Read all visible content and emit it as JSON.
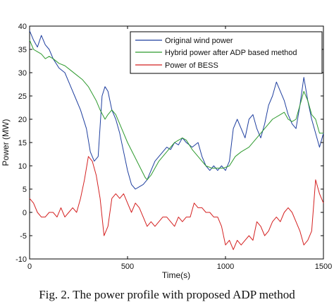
{
  "chart_data": {
    "type": "line",
    "xlabel": "Time(s)",
    "ylabel": "Power (MW)",
    "xlim": [
      0,
      1500
    ],
    "ylim": [
      -10,
      40
    ],
    "xticks": [
      0,
      500,
      1000,
      1500
    ],
    "yticks": [
      -10,
      -5,
      0,
      5,
      10,
      15,
      20,
      25,
      30,
      35,
      40
    ],
    "grid": false,
    "legend_position": "top-right",
    "series": [
      {
        "name": "Original wind power",
        "color": "#1f3f9f",
        "x": [
          0,
          20,
          40,
          60,
          80,
          100,
          120,
          150,
          180,
          200,
          230,
          260,
          290,
          310,
          330,
          350,
          370,
          385,
          400,
          420,
          440,
          460,
          480,
          500,
          520,
          540,
          560,
          580,
          600,
          620,
          640,
          660,
          680,
          700,
          720,
          740,
          760,
          780,
          800,
          830,
          860,
          880,
          900,
          920,
          940,
          960,
          980,
          1000,
          1020,
          1040,
          1060,
          1080,
          1100,
          1120,
          1140,
          1160,
          1180,
          1200,
          1220,
          1240,
          1260,
          1280,
          1300,
          1320,
          1340,
          1360,
          1380,
          1400,
          1420,
          1440,
          1460,
          1480,
          1500
        ],
        "values": [
          39,
          37,
          35.5,
          38,
          36,
          35,
          33,
          31,
          30,
          28,
          25,
          22,
          18,
          13,
          11,
          12,
          25,
          27,
          26,
          22,
          20,
          17,
          13,
          9,
          6,
          5,
          5.5,
          6,
          7,
          9,
          11,
          12,
          13,
          14,
          13.5,
          15,
          14.5,
          16,
          15,
          14,
          15,
          12,
          10,
          9,
          10,
          9,
          10,
          9,
          11,
          18,
          20,
          18,
          16,
          20,
          21,
          18,
          16,
          19,
          23,
          25,
          28,
          26,
          24,
          21,
          19,
          18,
          23,
          29,
          24,
          20,
          17,
          14,
          17
        ]
      },
      {
        "name": "Hybrid power after ADP based method",
        "color": "#2e9a2e",
        "x": [
          0,
          20,
          40,
          60,
          80,
          100,
          120,
          150,
          180,
          210,
          240,
          270,
          300,
          340,
          360,
          385,
          400,
          420,
          440,
          470,
          500,
          530,
          560,
          590,
          600,
          620,
          640,
          660,
          680,
          700,
          720,
          740,
          760,
          780,
          800,
          830,
          860,
          880,
          900,
          930,
          960,
          990,
          1020,
          1050,
          1080,
          1120,
          1160,
          1200,
          1240,
          1280,
          1300,
          1320,
          1340,
          1360,
          1380,
          1400,
          1420,
          1440,
          1460,
          1480,
          1500
        ],
        "values": [
          37,
          35,
          34.5,
          34,
          33,
          33.5,
          33,
          32,
          31.5,
          30.5,
          29.5,
          28.5,
          27,
          24,
          22,
          20,
          21,
          22,
          21,
          18,
          15,
          12.5,
          10,
          7.5,
          7,
          8,
          9.5,
          11,
          12,
          13,
          14,
          15,
          15.5,
          16,
          15.5,
          13.5,
          12,
          11,
          10,
          9.5,
          9.5,
          9.5,
          10,
          12,
          13,
          14,
          16,
          18,
          20,
          21,
          21.5,
          20,
          19.5,
          20,
          23,
          26,
          24,
          21,
          20,
          17,
          17
        ]
      },
      {
        "name": "Power of BESS",
        "color": "#d42020",
        "x": [
          0,
          20,
          40,
          60,
          80,
          100,
          120,
          140,
          160,
          180,
          200,
          220,
          240,
          260,
          280,
          300,
          320,
          340,
          360,
          380,
          400,
          420,
          440,
          460,
          480,
          500,
          520,
          540,
          560,
          580,
          600,
          620,
          640,
          660,
          680,
          700,
          720,
          740,
          760,
          780,
          800,
          820,
          840,
          860,
          880,
          900,
          920,
          940,
          960,
          980,
          1000,
          1020,
          1040,
          1060,
          1080,
          1100,
          1120,
          1140,
          1160,
          1180,
          1200,
          1220,
          1240,
          1260,
          1280,
          1300,
          1320,
          1340,
          1360,
          1380,
          1400,
          1420,
          1440,
          1460,
          1480,
          1500
        ],
        "values": [
          3,
          2,
          0,
          -1,
          -1,
          0,
          0,
          -1,
          1,
          -1,
          0,
          1,
          0,
          3,
          7,
          12,
          11,
          8,
          3,
          -5,
          -3,
          3,
          4,
          3,
          4,
          2,
          0,
          2,
          1,
          -1,
          -3,
          -2,
          -3,
          -2,
          -1,
          -1,
          -2,
          -3,
          -1,
          -2,
          -1,
          -1,
          2,
          1,
          1,
          0,
          0,
          -1,
          -1,
          -3,
          -7,
          -6,
          -8,
          -6,
          -7,
          -6,
          -5,
          -6,
          -2,
          -3,
          -5,
          -4,
          -2,
          -1,
          -2,
          0,
          1,
          0,
          -2,
          -4,
          -7,
          -6,
          -4,
          7,
          4,
          2
        ]
      }
    ]
  },
  "caption": "Fig. 2.  The power profile with proposed ADP method"
}
